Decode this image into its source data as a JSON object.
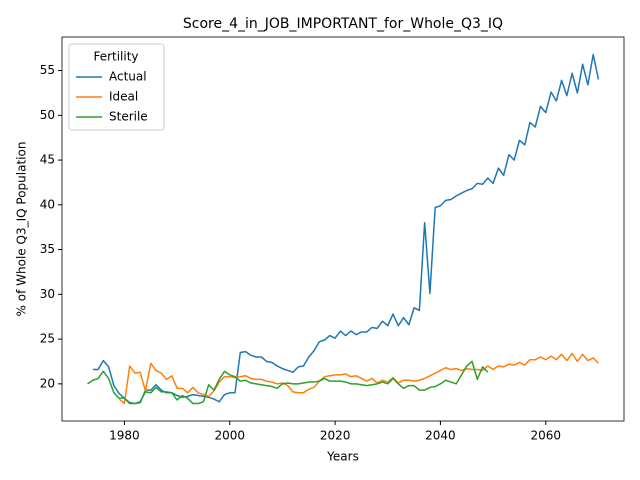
{
  "chart_data": {
    "type": "line",
    "title": "Score_4_in_JOB_IMPORTANT_for_Whole_Q3_IQ",
    "xlabel": "Years",
    "ylabel": "% of Whole Q3_IQ Population",
    "legend_title": "Fertility",
    "legend": "upper left",
    "x": [
      1973,
      1974,
      1975,
      1976,
      1977,
      1978,
      1979,
      1980,
      1981,
      1982,
      1983,
      1984,
      1985,
      1986,
      1987,
      1988,
      1989,
      1990,
      1991,
      1992,
      1993,
      1994,
      1995,
      1996,
      1997,
      1998,
      1999,
      2000,
      2001,
      2002,
      2003,
      2004,
      2005,
      2006,
      2007,
      2008,
      2009,
      2010,
      2011,
      2012,
      2013,
      2014,
      2015,
      2016,
      2017,
      2018,
      2019,
      2020,
      2021,
      2022,
      2023,
      2024,
      2025,
      2026,
      2027,
      2028,
      2029,
      2030,
      2031,
      2032,
      2033,
      2034,
      2035,
      2036,
      2037,
      2038,
      2039,
      2040,
      2041,
      2042,
      2043,
      2044,
      2045,
      2046,
      2047,
      2048,
      2049,
      2050,
      2051,
      2052,
      2053,
      2054,
      2055,
      2056,
      2057,
      2058,
      2059,
      2060,
      2061,
      2062,
      2063,
      2064,
      2065,
      2066,
      2067,
      2068,
      2069,
      2070
    ],
    "series": [
      {
        "name": "Actual",
        "color": "#1f77b4",
        "values": [
          null,
          21.6,
          21.6,
          22.6,
          21.9,
          19.8,
          18.9,
          18.4,
          17.9,
          17.8,
          17.9,
          19.3,
          19.3,
          19.9,
          19.3,
          19.0,
          19.0,
          18.7,
          18.5,
          18.6,
          18.8,
          18.7,
          18.6,
          18.5,
          18.3,
          18.0,
          18.8,
          19.0,
          19.0,
          23.5,
          23.6,
          23.2,
          23.0,
          23.0,
          22.5,
          22.4,
          22.0,
          21.7,
          21.5,
          21.3,
          21.9,
          22.0,
          23.0,
          23.7,
          24.7,
          24.9,
          25.4,
          25.1,
          25.9,
          25.4,
          25.9,
          25.5,
          25.8,
          25.8,
          26.3,
          26.2,
          27.0,
          26.5,
          27.8,
          26.5,
          27.4,
          26.6,
          28.5,
          28.2,
          38.0,
          30.1,
          39.7,
          39.9,
          40.5,
          40.6,
          41.0,
          41.3,
          41.6,
          41.8,
          42.4,
          42.3,
          43.0,
          42.4,
          44.1,
          43.3,
          45.6,
          45.0,
          47.2,
          46.7,
          49.2,
          48.7,
          51.0,
          50.3,
          52.6,
          51.6,
          53.9,
          52.2,
          54.7,
          52.5,
          55.7,
          53.4,
          56.8,
          54.0
        ]
      },
      {
        "name": "Ideal",
        "color": "#ff7f0e",
        "values": [
          null,
          null,
          null,
          null,
          null,
          null,
          18.3,
          17.8,
          22.0,
          21.2,
          21.3,
          19.2,
          22.3,
          21.5,
          21.2,
          20.5,
          20.9,
          19.5,
          19.5,
          19.0,
          19.6,
          19.0,
          18.8,
          18.6,
          19.2,
          20.2,
          20.8,
          20.8,
          20.7,
          20.8,
          20.9,
          20.6,
          20.5,
          20.5,
          20.3,
          20.2,
          20.0,
          20.1,
          19.8,
          19.1,
          19.0,
          19.0,
          19.4,
          19.6,
          20.3,
          20.8,
          20.9,
          21.0,
          21.0,
          21.1,
          20.8,
          20.9,
          20.6,
          20.3,
          20.6,
          20.1,
          20.4,
          20.2,
          20.7,
          20.1,
          20.4,
          20.4,
          20.3,
          20.4,
          20.6,
          20.9,
          21.2,
          21.5,
          21.8,
          21.6,
          21.7,
          21.5,
          21.7,
          21.6,
          21.6,
          21.5,
          22.0,
          21.6,
          22.0,
          21.9,
          22.2,
          22.1,
          22.4,
          22.1,
          22.7,
          22.7,
          23.0,
          22.7,
          23.1,
          22.7,
          23.3,
          22.6,
          23.4,
          22.5,
          23.3,
          22.6,
          22.9,
          22.3
        ]
      },
      {
        "name": "Sterile",
        "color": "#2ca02c",
        "values": [
          20.0,
          20.4,
          20.6,
          21.4,
          20.6,
          19.0,
          18.4,
          18.4,
          17.8,
          17.8,
          18.0,
          19.1,
          19.0,
          19.6,
          19.1,
          19.1,
          19.0,
          18.2,
          18.7,
          18.4,
          17.8,
          17.8,
          18.0,
          19.9,
          19.3,
          20.5,
          21.4,
          21.0,
          20.8,
          20.3,
          20.4,
          20.1,
          20.0,
          19.9,
          19.8,
          19.7,
          19.5,
          20.0,
          20.1,
          20.0,
          20.0,
          20.1,
          20.2,
          20.2,
          20.3,
          20.6,
          20.3,
          20.3,
          20.3,
          20.2,
          20.0,
          20.0,
          19.9,
          19.8,
          19.9,
          20.0,
          20.2,
          20.0,
          20.6,
          20.0,
          19.5,
          19.8,
          19.8,
          19.3,
          19.3,
          19.6,
          19.7,
          20.0,
          20.4,
          20.2,
          20.0,
          21.0,
          22.0,
          22.5,
          20.5,
          21.9,
          21.3,
          null,
          null,
          null,
          null,
          null,
          null,
          null,
          null,
          null,
          null,
          null,
          null,
          null,
          null,
          null,
          null,
          null,
          null,
          null,
          null,
          null
        ]
      }
    ],
    "xlim": [
      1968.15,
      2074.85
    ],
    "xticks": [
      1980,
      2000,
      2020,
      2040,
      2060
    ],
    "ylim": [
      15.85,
      58.75
    ],
    "yticks": [
      20,
      25,
      30,
      35,
      40,
      45,
      50,
      55
    ]
  }
}
